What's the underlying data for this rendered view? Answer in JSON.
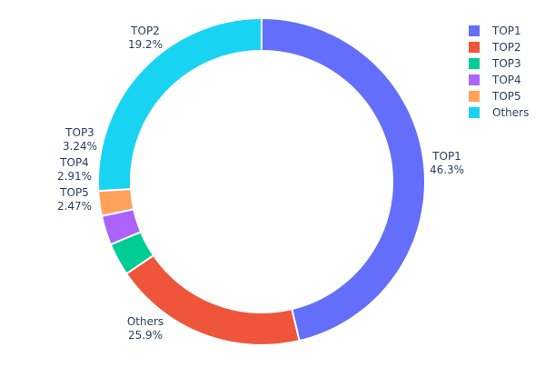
{
  "chart_data": {
    "type": "pie",
    "hole": 0.8,
    "labels": [
      "TOP1",
      "TOP2",
      "TOP3",
      "TOP4",
      "TOP5",
      "Others"
    ],
    "values": [
      46.3,
      19.2,
      3.24,
      2.91,
      2.47,
      25.9
    ],
    "value_labels": [
      "46.3%",
      "19.2%",
      "3.24%",
      "2.91%",
      "2.47%",
      "25.9%"
    ],
    "colors": [
      "#636efa",
      "#EF553B",
      "#00cc96",
      "#ab63fa",
      "#FFA15A",
      "#19d3f3"
    ],
    "direction": "clockwise",
    "legend_placement": "top-right",
    "legend": [
      "TOP1",
      "TOP2",
      "TOP3",
      "TOP4",
      "TOP5",
      "Others"
    ]
  }
}
